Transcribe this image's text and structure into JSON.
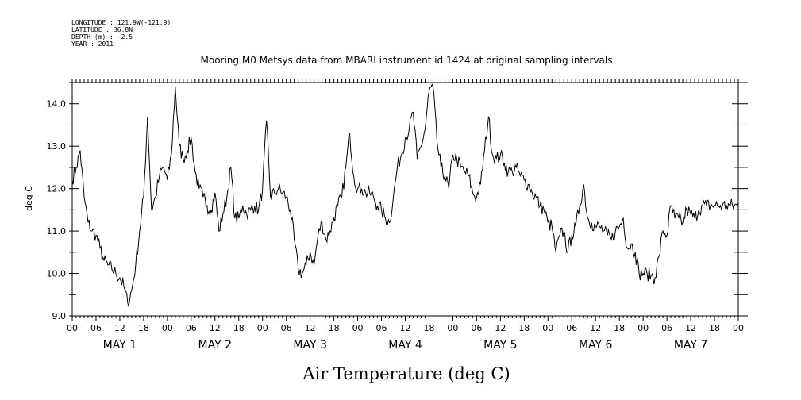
{
  "header_info": {
    "longitude": "LONGITUDE : 121.9W(-121.9)",
    "latitude": "LATITUDE : 36.8N",
    "depth": "DEPTH (m) : -2.5",
    "year": "YEAR : 2011"
  },
  "chart_data": {
    "type": "line",
    "title": "Mooring M0 Metsys data from MBARI instrument id 1424 at original sampling intervals",
    "xlabel": "Air Temperature (deg C)",
    "ylabel": "deg C",
    "ylim": [
      9.0,
      14.5
    ],
    "yticks": [
      "9.0",
      "10.0",
      "11.0",
      "12.0",
      "13.0",
      "14.0"
    ],
    "xlim_hours": [
      0,
      168
    ],
    "xtick_labels": [
      "00",
      "06",
      "12",
      "18",
      "00",
      "06",
      "12",
      "18",
      "00",
      "06",
      "12",
      "18",
      "00",
      "06",
      "12",
      "18",
      "00",
      "06",
      "12",
      "18",
      "00",
      "06",
      "12",
      "18",
      "00",
      "06",
      "12",
      "18",
      "00"
    ],
    "day_labels": [
      {
        "label": "MAY  1"
      },
      {
        "label": "MAY  2"
      },
      {
        "label": "MAY  3"
      },
      {
        "label": "MAY  4"
      },
      {
        "label": "MAY  5"
      },
      {
        "label": "MAY  6"
      },
      {
        "label": "MAY  7"
      }
    ],
    "series": [
      {
        "x": [
          0,
          1,
          2,
          3,
          4,
          5,
          6,
          7,
          8,
          9,
          10,
          11,
          12,
          13,
          14,
          15,
          16,
          17,
          18,
          19,
          20,
          21,
          22,
          23,
          24,
          25,
          26,
          27,
          28,
          29,
          30,
          31,
          32,
          33,
          34,
          35,
          36,
          37,
          38,
          39,
          40,
          41,
          42,
          43,
          44,
          45,
          46,
          47,
          48,
          49,
          50,
          51,
          52,
          53,
          54,
          55,
          56,
          57,
          58,
          59,
          60,
          61,
          62,
          63,
          64,
          65,
          66,
          67,
          68,
          69,
          70,
          71,
          72,
          73,
          74,
          75,
          76,
          77,
          78,
          79,
          80,
          81,
          82,
          83,
          84,
          85,
          86,
          87,
          88,
          89,
          90,
          91,
          92,
          93,
          94,
          95,
          96,
          97,
          98,
          99,
          100,
          101,
          102,
          103,
          104,
          105,
          106,
          107,
          108,
          109,
          110,
          111,
          112,
          113,
          114,
          115,
          116,
          117,
          118,
          119,
          120,
          121,
          122,
          123,
          124,
          125,
          126,
          127,
          128,
          129,
          130,
          131,
          132,
          133,
          134,
          135,
          136,
          137,
          138,
          139,
          140,
          141,
          142,
          143,
          144,
          145,
          146,
          147,
          148,
          149,
          150,
          151,
          152,
          153,
          154,
          155,
          156,
          157,
          158,
          159,
          160,
          161,
          162,
          163,
          164,
          165,
          166,
          167,
          168
        ],
        "y": [
          12.2,
          12.5,
          12.9,
          11.8,
          11.2,
          11.0,
          10.9,
          10.6,
          10.3,
          10.2,
          10.1,
          10.0,
          9.9,
          9.7,
          9.3,
          9.6,
          10.2,
          11.0,
          11.8,
          13.7,
          11.5,
          11.8,
          12.3,
          12.5,
          12.2,
          12.8,
          14.4,
          13.0,
          12.7,
          12.9,
          13.2,
          12.4,
          12.0,
          11.8,
          11.6,
          11.5,
          11.9,
          11.0,
          11.4,
          11.8,
          12.5,
          11.3,
          11.3,
          11.6,
          11.4,
          11.5,
          11.6,
          11.5,
          12.0,
          13.6,
          11.8,
          11.9,
          12.0,
          11.9,
          11.8,
          11.5,
          10.8,
          10.1,
          10.0,
          10.2,
          10.5,
          10.2,
          10.9,
          11.2,
          10.8,
          11.0,
          11.3,
          11.6,
          11.8,
          12.5,
          13.3,
          12.3,
          12.0,
          12.0,
          11.9,
          11.9,
          11.8,
          11.6,
          11.5,
          11.3,
          11.2,
          11.8,
          12.5,
          12.8,
          13.2,
          13.4,
          13.8,
          12.7,
          13.0,
          13.4,
          14.3,
          14.4,
          13.1,
          12.5,
          12.3,
          12.0,
          12.8,
          12.7,
          12.5,
          12.4,
          12.3,
          11.9,
          11.8,
          12.1,
          12.9,
          13.7,
          12.8,
          12.7,
          12.8,
          12.6,
          12.4,
          12.4,
          12.5,
          12.3,
          12.2,
          12.1,
          11.9,
          11.8,
          11.6,
          11.5,
          11.2,
          11.1,
          10.5,
          10.9,
          11.0,
          10.5,
          10.9,
          11.1,
          11.6,
          12.1,
          11.3,
          11.2,
          11.1,
          11.1,
          11.0,
          10.9,
          10.8,
          11.0,
          11.1,
          11.3,
          10.6,
          10.7,
          10.5,
          10.0,
          10.0,
          10.0,
          9.95,
          9.9,
          10.4,
          11.0,
          10.9,
          11.6,
          11.3,
          11.3,
          11.2,
          11.5,
          11.4,
          11.3,
          11.5,
          11.6,
          11.6,
          11.6,
          11.6,
          11.6,
          11.6,
          11.6,
          11.6,
          11.6,
          11.6
        ]
      }
    ]
  }
}
